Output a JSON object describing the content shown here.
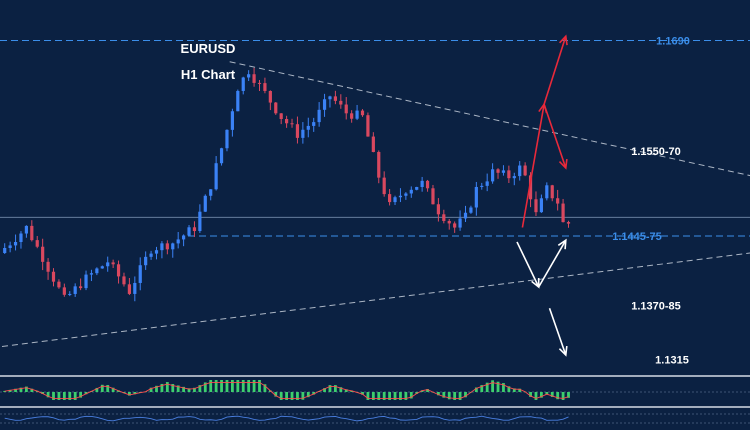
{
  "chart_data": {
    "type": "candlestick",
    "title": "EURUSD",
    "subtitle": "H1 Chart",
    "colors": {
      "background": "#0b2142",
      "bull": "#3b82f6",
      "bear": "#d9485f",
      "level_blue": "#3b8eea",
      "level_white": "#ffffff",
      "arrow_red": "#e8293a",
      "arrow_white": "#ffffff",
      "trendline": "#c8d0dc",
      "hist": "#3ccf6e",
      "signal": "#ff4d4d",
      "osc2": "#4a7fe0"
    },
    "levels": [
      {
        "label": "1.1690",
        "price": 1.169,
        "color": "blue",
        "dashed": true
      },
      {
        "label": "1.1550-70",
        "price": 1.156,
        "color": "white",
        "dashed": false
      },
      {
        "label": "1.1445-75",
        "price": 1.146,
        "color": "blue",
        "dashed": true
      },
      {
        "label": "1.1370-85",
        "price": 1.1378,
        "color": "white",
        "dashed": false
      },
      {
        "label": "1.1315",
        "price": 1.1315,
        "color": "white",
        "dashed": false
      }
    ],
    "horizontal_line_price": 1.1482,
    "trendlines": [
      {
        "from": [
          42,
          1.1665
        ],
        "to": [
          123,
          1.1552
        ]
      },
      {
        "from": [
          0,
          1.133
        ],
        "to": [
          123,
          1.1428
        ]
      }
    ],
    "arrows": [
      {
        "color": "red",
        "from": [
          96,
          1.147
        ],
        "to": [
          100,
          1.1615
        ]
      },
      {
        "color": "red",
        "from": [
          100,
          1.1615
        ],
        "to": [
          104,
          1.154
        ]
      },
      {
        "color": "red",
        "from": [
          100,
          1.1615
        ],
        "to": [
          104,
          1.1695
        ]
      },
      {
        "color": "white",
        "from": [
          95,
          1.1453
        ],
        "to": [
          99,
          1.14
        ]
      },
      {
        "color": "white",
        "from": [
          99,
          1.14
        ],
        "to": [
          104,
          1.1455
        ]
      },
      {
        "color": "white",
        "from": [
          101,
          1.1375
        ],
        "to": [
          104,
          1.132
        ]
      }
    ],
    "ylim": [
      1.13,
      1.172
    ],
    "xlim": [
      0,
      114
    ],
    "grid": false,
    "legend": "none"
  }
}
